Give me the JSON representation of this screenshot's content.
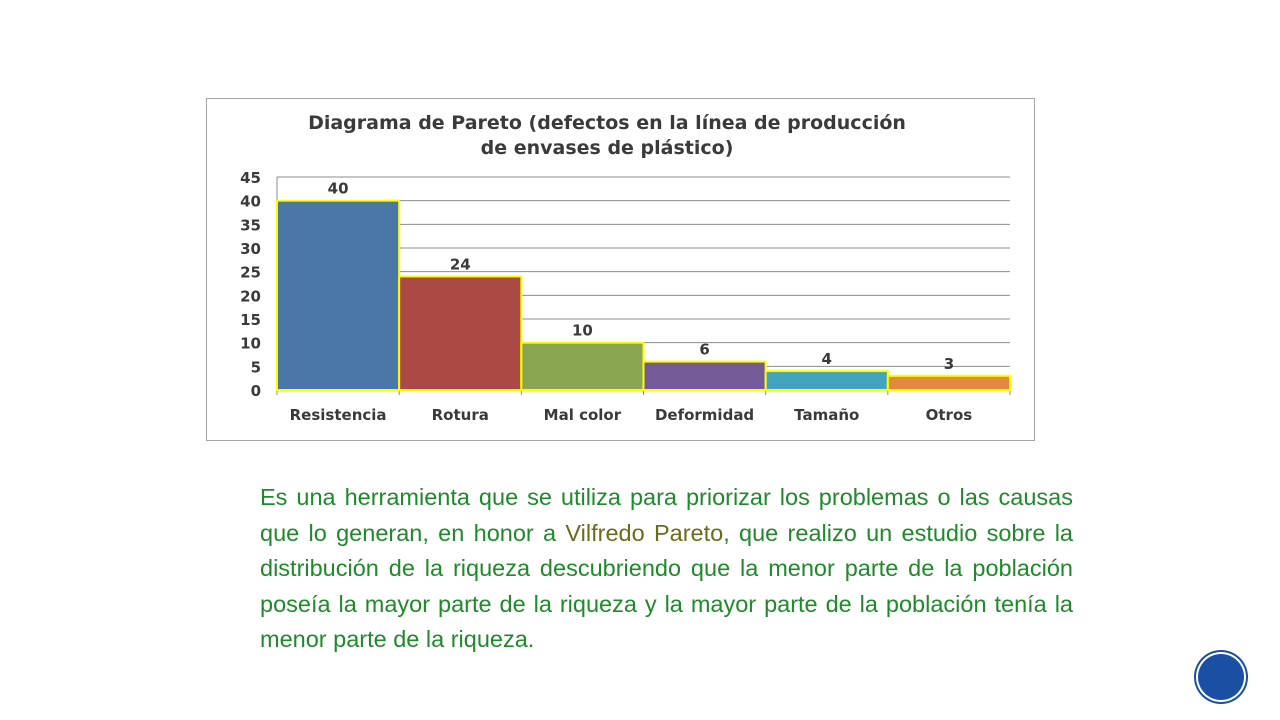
{
  "chart_data": {
    "type": "bar",
    "title_line1": "Diagrama de Pareto (defectos en la línea de producción",
    "title_line2": "de envases de plástico)",
    "categories": [
      "Resistencia",
      "Rotura",
      "Mal color",
      "Deformidad",
      "Tamaño",
      "Otros"
    ],
    "values": [
      40,
      24,
      10,
      6,
      4,
      3
    ],
    "colors": [
      "#4a76a8",
      "#ab4a45",
      "#8ba650",
      "#755a98",
      "#43a4bd",
      "#e3893c"
    ],
    "bar_outline": "#ffff00",
    "ylim": [
      0,
      45
    ],
    "yticks": [
      0,
      5,
      10,
      15,
      20,
      25,
      30,
      35,
      40,
      45
    ],
    "grid": true
  },
  "text": {
    "part1": "Es una herramienta que se utiliza para priorizar los problemas o las causas que lo generan, en honor a ",
    "name": "Vilfredo Pareto",
    "part2": ", que realizo un estudio sobre la distribución de la riqueza descubriendo que la menor parte de la población poseía la mayor parte de la riqueza y la mayor parte de la población tenía la menor parte de la riqueza."
  }
}
